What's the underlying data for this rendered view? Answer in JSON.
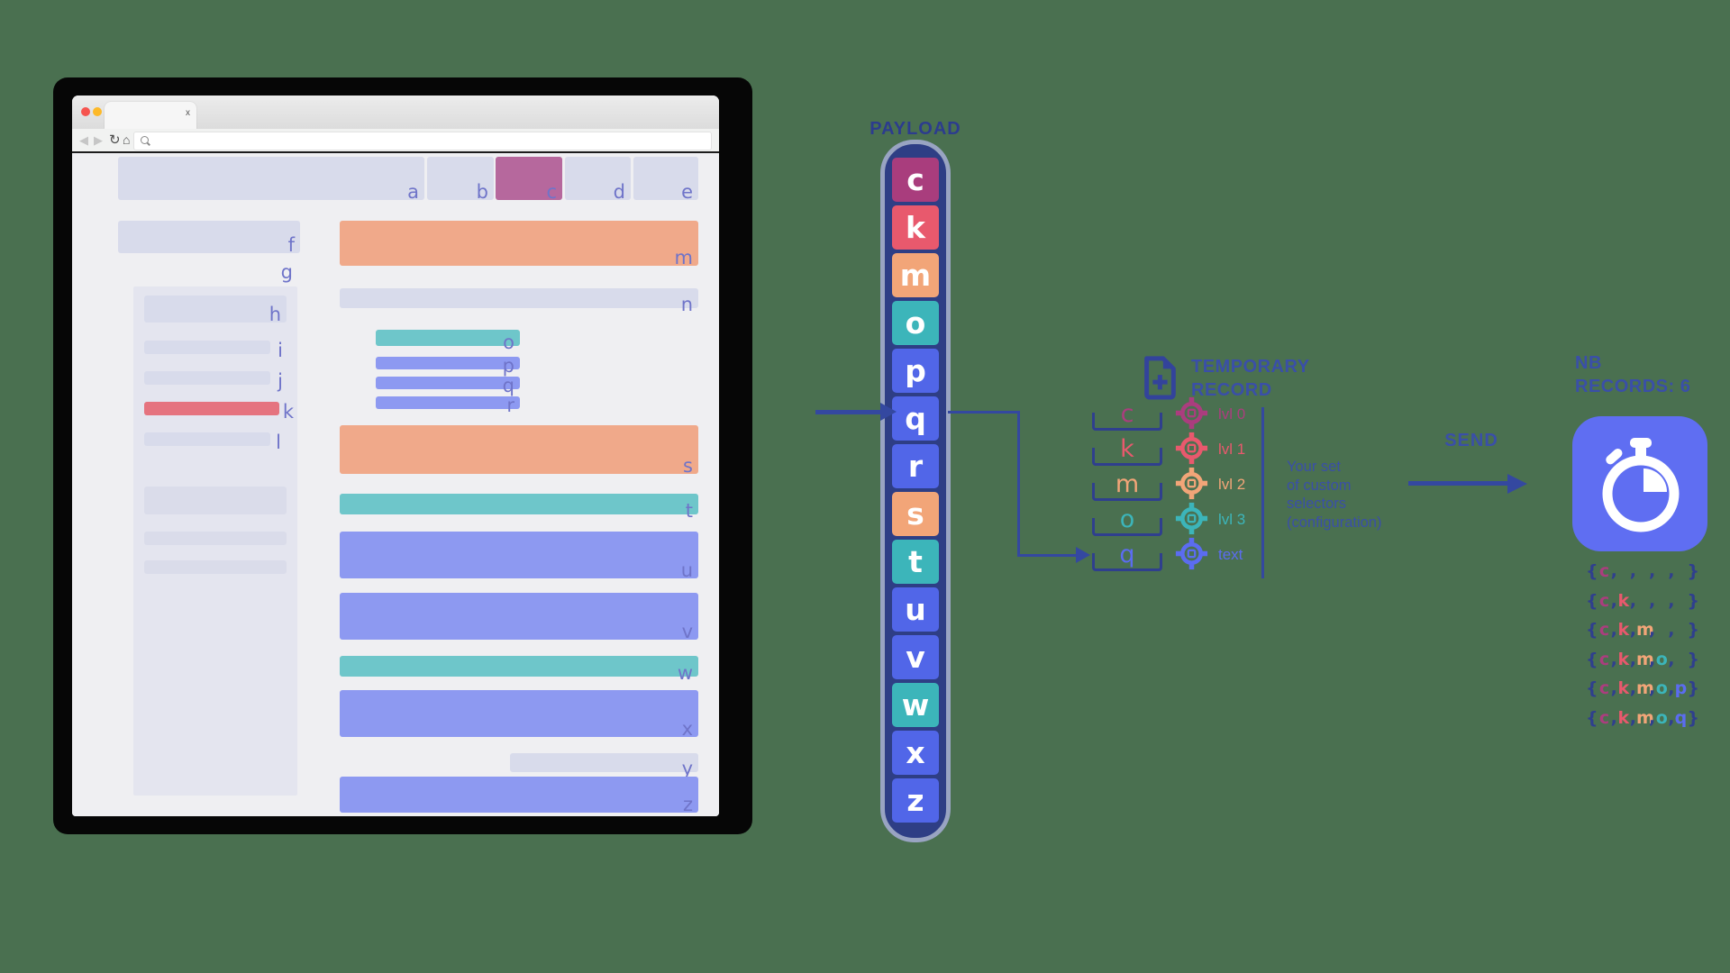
{
  "colors": {
    "background": "#4a7050",
    "navy": "#2e3e85",
    "ink": "#3a4fa8",
    "arrow": "#3448a0",
    "bracket": "#2f3f8e",
    "app_icon_bg": "#5f6ef2",
    "letters": {
      "c": "#ab3d7e",
      "k": "#e8596d",
      "m": "#f2a578",
      "o": "#3cb5ba",
      "p": "#5b6cf0",
      "q": "#5b6cf0"
    },
    "wireframe": {
      "lavender": "#d8dbeb",
      "panel": "#e4e5ef",
      "purple": "#b6689d",
      "salmon": "#f0a98a",
      "teal": "#6ec6ca",
      "blue": "#8d99f1",
      "red": "#e5737f",
      "label": "#6f74c9",
      "content_bg": "#efeff2"
    }
  },
  "browser": {
    "tab_close_label": "x",
    "toolbar": {
      "back": "◀",
      "forward": "▶",
      "reload": "↻",
      "home": "⌂"
    },
    "wireframe_labels": {
      "a": "a",
      "b": "b",
      "c": "c",
      "d": "d",
      "e": "e",
      "f": "f",
      "g": "g",
      "h": "h",
      "i": "i",
      "j": "j",
      "k": "k",
      "l": "l",
      "m": "m",
      "n": "n",
      "o": "o",
      "p": "p",
      "q": "q",
      "r": "r",
      "s": "s",
      "t": "t",
      "u": "u",
      "v": "v",
      "w": "w",
      "x": "x",
      "y": "y",
      "z": "z"
    }
  },
  "payload": {
    "title": "PAYLOAD",
    "tiles": [
      {
        "letter": "c",
        "color": "#a93d7d"
      },
      {
        "letter": "k",
        "color": "#e8596d"
      },
      {
        "letter": "m",
        "color": "#f2a578"
      },
      {
        "letter": "o",
        "color": "#3cb5ba"
      },
      {
        "letter": "p",
        "color": "#5166e8"
      },
      {
        "letter": "q",
        "color": "#5166e8"
      },
      {
        "letter": "r",
        "color": "#5166e8"
      },
      {
        "letter": "s",
        "color": "#f2a578"
      },
      {
        "letter": "t",
        "color": "#3cb5ba"
      },
      {
        "letter": "u",
        "color": "#5166e8"
      },
      {
        "letter": "v",
        "color": "#5166e8"
      },
      {
        "letter": "w",
        "color": "#3cb5ba"
      },
      {
        "letter": "x",
        "color": "#5166e8"
      },
      {
        "letter": "z",
        "color": "#5166e8"
      }
    ]
  },
  "temp_record": {
    "title_line1": "TEMPORARY",
    "title_line2": "RECORD",
    "rows": [
      {
        "letter": "c",
        "label": "lvl 0",
        "color": "#ab3d7e"
      },
      {
        "letter": "k",
        "label": "lvl 1",
        "color": "#e8596d"
      },
      {
        "letter": "m",
        "label": "lvl 2",
        "color": "#f2a578"
      },
      {
        "letter": "o",
        "label": "lvl 3",
        "color": "#3cb5ba"
      },
      {
        "letter": "q",
        "label": "text",
        "color": "#5b6cf0"
      }
    ],
    "note_lines": [
      "Your set",
      "of custom",
      "selectors",
      "(configuration)"
    ]
  },
  "send": {
    "label": "SEND"
  },
  "records": {
    "title_line1": "NB",
    "title_line2": "RECORDS: 6",
    "rows": [
      [
        "c",
        "",
        "",
        "",
        ""
      ],
      [
        "c",
        "k",
        "",
        "",
        ""
      ],
      [
        "c",
        "k",
        "m",
        "",
        ""
      ],
      [
        "c",
        "k",
        "m",
        "o",
        ""
      ],
      [
        "c",
        "k",
        "m",
        "o",
        "p"
      ],
      [
        "c",
        "k",
        "m",
        "o",
        "q"
      ]
    ]
  }
}
